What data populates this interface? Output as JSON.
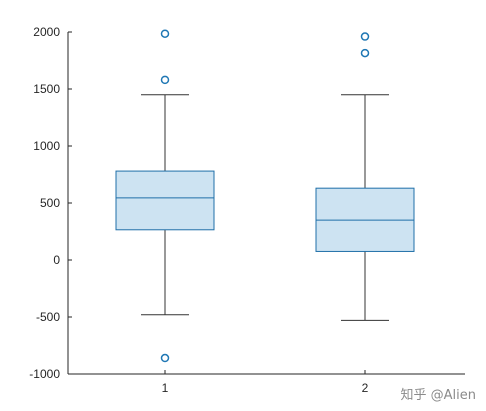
{
  "chart_data": {
    "type": "boxplot",
    "categories": [
      "1",
      "2"
    ],
    "boxes": [
      {
        "category": "1",
        "whisker_low": -480,
        "q1": 265,
        "median": 545,
        "q3": 780,
        "whisker_high": 1450,
        "outliers": [
          1985,
          1580,
          -860
        ]
      },
      {
        "category": "2",
        "whisker_low": -530,
        "q1": 75,
        "median": 350,
        "q3": 630,
        "whisker_high": 1450,
        "outliers": [
          1960,
          1815
        ]
      }
    ],
    "ylim": [
      -1000,
      2000
    ],
    "yticks": [
      -1000,
      -500,
      0,
      500,
      1000,
      1500,
      2000
    ],
    "grid": false,
    "colors": {
      "box_fill": "#cde3f2",
      "box_edge": "#1f6fa8",
      "median": "#1f6fa8",
      "whisker": "#333333",
      "outlier": "#1f77b4",
      "axis": "#262626"
    }
  },
  "watermark": "知乎 @Alien"
}
